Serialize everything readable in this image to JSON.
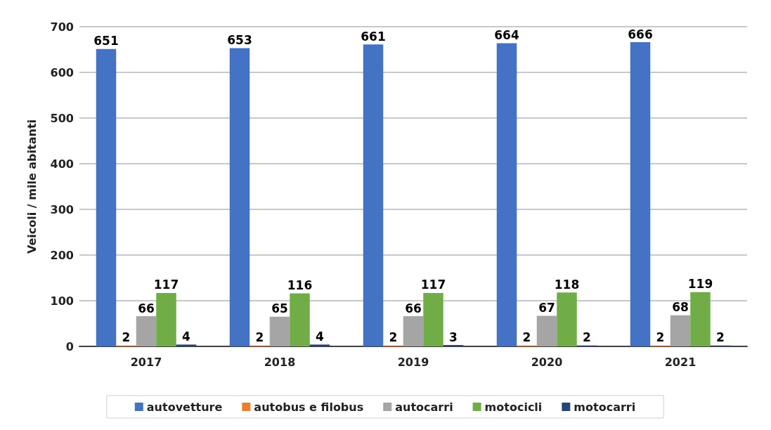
{
  "chart_data": {
    "type": "bar",
    "ylabel": "Veicoli / mile abitanti",
    "categories": [
      "2017",
      "2018",
      "2019",
      "2020",
      "2021"
    ],
    "series": [
      {
        "name": "autovetture",
        "color": "#4472c4",
        "values": [
          651,
          653,
          661,
          664,
          666
        ]
      },
      {
        "name": "autobus e filobus",
        "color": "#ed7d31",
        "values": [
          2,
          2,
          2,
          2,
          2
        ]
      },
      {
        "name": "autocarri",
        "color": "#a5a5a5",
        "values": [
          66,
          65,
          66,
          67,
          68
        ]
      },
      {
        "name": "motocicli",
        "color": "#70ad47",
        "values": [
          117,
          116,
          117,
          118,
          119
        ]
      },
      {
        "name": "motocarri",
        "color": "#264478",
        "values": [
          4,
          4,
          3,
          2,
          2
        ]
      }
    ],
    "ylim": [
      0,
      700
    ],
    "yticks": [
      0,
      100,
      200,
      300,
      400,
      500,
      600,
      700
    ],
    "grid": "y",
    "legend": "bottom",
    "data_labels": true
  }
}
